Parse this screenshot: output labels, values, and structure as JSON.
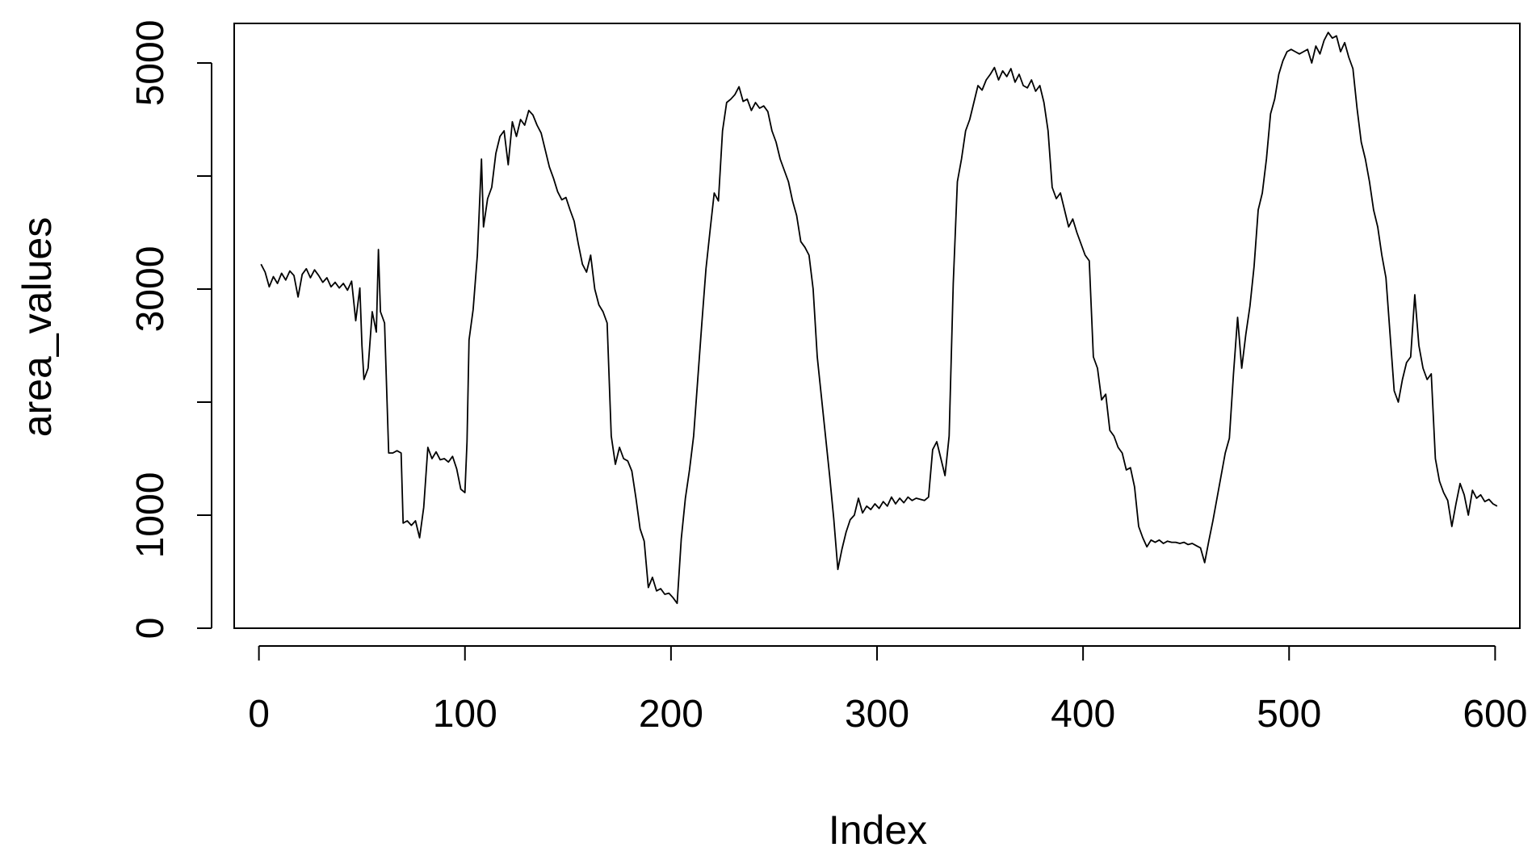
{
  "chart_data": {
    "type": "line",
    "xlabel": "Index",
    "ylabel": "area_values",
    "xlim": [
      -12,
      612
    ],
    "ylim": [
      0,
      5350
    ],
    "x_ticks": [
      0,
      100,
      200,
      300,
      400,
      500,
      600
    ],
    "y_ticks": [
      0,
      1000,
      2000,
      3000,
      4000,
      5000
    ],
    "y_tick_labels": [
      0,
      1000,
      3000,
      5000
    ],
    "grid": false,
    "line_color": "#000000",
    "series": [
      {
        "points": [
          [
            1,
            3220
          ],
          [
            3,
            3150
          ],
          [
            5,
            3020
          ],
          [
            7,
            3110
          ],
          [
            9,
            3050
          ],
          [
            11,
            3140
          ],
          [
            13,
            3080
          ],
          [
            15,
            3160
          ],
          [
            17,
            3120
          ],
          [
            19,
            2930
          ],
          [
            21,
            3130
          ],
          [
            23,
            3180
          ],
          [
            25,
            3100
          ],
          [
            27,
            3170
          ],
          [
            29,
            3120
          ],
          [
            31,
            3060
          ],
          [
            33,
            3100
          ],
          [
            35,
            3020
          ],
          [
            37,
            3060
          ],
          [
            39,
            3010
          ],
          [
            41,
            3050
          ],
          [
            43,
            2990
          ],
          [
            45,
            3070
          ],
          [
            47,
            2720
          ],
          [
            49,
            3010
          ],
          [
            50,
            2500
          ],
          [
            51,
            2200
          ],
          [
            53,
            2300
          ],
          [
            55,
            2800
          ],
          [
            57,
            2620
          ],
          [
            58,
            3350
          ],
          [
            59,
            2800
          ],
          [
            61,
            2700
          ],
          [
            63,
            1550
          ],
          [
            65,
            1550
          ],
          [
            67,
            1570
          ],
          [
            69,
            1550
          ],
          [
            70,
            930
          ],
          [
            72,
            950
          ],
          [
            74,
            910
          ],
          [
            76,
            950
          ],
          [
            78,
            800
          ],
          [
            80,
            1070
          ],
          [
            82,
            1600
          ],
          [
            84,
            1500
          ],
          [
            86,
            1560
          ],
          [
            88,
            1490
          ],
          [
            90,
            1500
          ],
          [
            92,
            1470
          ],
          [
            94,
            1520
          ],
          [
            96,
            1410
          ],
          [
            98,
            1230
          ],
          [
            100,
            1200
          ],
          [
            101,
            1650
          ],
          [
            102,
            2550
          ],
          [
            104,
            2820
          ],
          [
            106,
            3300
          ],
          [
            108,
            4150
          ],
          [
            109,
            3550
          ],
          [
            111,
            3800
          ],
          [
            113,
            3900
          ],
          [
            115,
            4200
          ],
          [
            117,
            4350
          ],
          [
            119,
            4400
          ],
          [
            121,
            4100
          ],
          [
            123,
            4480
          ],
          [
            125,
            4350
          ],
          [
            127,
            4500
          ],
          [
            129,
            4450
          ],
          [
            131,
            4580
          ],
          [
            133,
            4540
          ],
          [
            135,
            4450
          ],
          [
            137,
            4380
          ],
          [
            139,
            4230
          ],
          [
            141,
            4080
          ],
          [
            143,
            3980
          ],
          [
            145,
            3860
          ],
          [
            147,
            3790
          ],
          [
            149,
            3810
          ],
          [
            151,
            3700
          ],
          [
            153,
            3600
          ],
          [
            155,
            3400
          ],
          [
            157,
            3220
          ],
          [
            159,
            3150
          ],
          [
            161,
            3300
          ],
          [
            163,
            3000
          ],
          [
            165,
            2860
          ],
          [
            167,
            2800
          ],
          [
            169,
            2700
          ],
          [
            171,
            1700
          ],
          [
            173,
            1450
          ],
          [
            175,
            1600
          ],
          [
            177,
            1500
          ],
          [
            179,
            1480
          ],
          [
            181,
            1390
          ],
          [
            183,
            1150
          ],
          [
            185,
            880
          ],
          [
            187,
            770
          ],
          [
            189,
            360
          ],
          [
            191,
            450
          ],
          [
            193,
            330
          ],
          [
            195,
            350
          ],
          [
            197,
            300
          ],
          [
            199,
            310
          ],
          [
            201,
            270
          ],
          [
            203,
            220
          ],
          [
            205,
            790
          ],
          [
            207,
            1150
          ],
          [
            209,
            1400
          ],
          [
            211,
            1700
          ],
          [
            213,
            2200
          ],
          [
            215,
            2700
          ],
          [
            217,
            3180
          ],
          [
            219,
            3520
          ],
          [
            221,
            3850
          ],
          [
            223,
            3780
          ],
          [
            225,
            4400
          ],
          [
            227,
            4650
          ],
          [
            229,
            4680
          ],
          [
            231,
            4720
          ],
          [
            233,
            4790
          ],
          [
            235,
            4660
          ],
          [
            237,
            4680
          ],
          [
            239,
            4580
          ],
          [
            241,
            4650
          ],
          [
            243,
            4600
          ],
          [
            245,
            4620
          ],
          [
            247,
            4570
          ],
          [
            249,
            4400
          ],
          [
            251,
            4300
          ],
          [
            253,
            4150
          ],
          [
            255,
            4050
          ],
          [
            257,
            3950
          ],
          [
            259,
            3780
          ],
          [
            261,
            3650
          ],
          [
            263,
            3420
          ],
          [
            265,
            3370
          ],
          [
            267,
            3300
          ],
          [
            269,
            3000
          ],
          [
            271,
            2400
          ],
          [
            273,
            2050
          ],
          [
            275,
            1700
          ],
          [
            277,
            1350
          ],
          [
            279,
            970
          ],
          [
            281,
            520
          ],
          [
            283,
            700
          ],
          [
            285,
            850
          ],
          [
            287,
            960
          ],
          [
            289,
            1000
          ],
          [
            291,
            1150
          ],
          [
            293,
            1020
          ],
          [
            295,
            1080
          ],
          [
            297,
            1050
          ],
          [
            299,
            1100
          ],
          [
            301,
            1060
          ],
          [
            303,
            1120
          ],
          [
            305,
            1080
          ],
          [
            307,
            1160
          ],
          [
            309,
            1100
          ],
          [
            311,
            1150
          ],
          [
            313,
            1110
          ],
          [
            315,
            1160
          ],
          [
            317,
            1130
          ],
          [
            319,
            1150
          ],
          [
            321,
            1140
          ],
          [
            323,
            1130
          ],
          [
            325,
            1160
          ],
          [
            327,
            1580
          ],
          [
            329,
            1650
          ],
          [
            331,
            1500
          ],
          [
            333,
            1350
          ],
          [
            335,
            1700
          ],
          [
            337,
            3050
          ],
          [
            339,
            3950
          ],
          [
            341,
            4150
          ],
          [
            343,
            4400
          ],
          [
            345,
            4500
          ],
          [
            347,
            4650
          ],
          [
            349,
            4800
          ],
          [
            351,
            4760
          ],
          [
            353,
            4850
          ],
          [
            355,
            4900
          ],
          [
            357,
            4960
          ],
          [
            359,
            4850
          ],
          [
            361,
            4930
          ],
          [
            363,
            4880
          ],
          [
            365,
            4950
          ],
          [
            367,
            4830
          ],
          [
            369,
            4900
          ],
          [
            371,
            4800
          ],
          [
            373,
            4780
          ],
          [
            375,
            4850
          ],
          [
            377,
            4750
          ],
          [
            379,
            4800
          ],
          [
            381,
            4650
          ],
          [
            383,
            4400
          ],
          [
            385,
            3900
          ],
          [
            387,
            3800
          ],
          [
            389,
            3850
          ],
          [
            391,
            3700
          ],
          [
            393,
            3550
          ],
          [
            395,
            3620
          ],
          [
            397,
            3500
          ],
          [
            399,
            3400
          ],
          [
            401,
            3300
          ],
          [
            403,
            3250
          ],
          [
            405,
            2400
          ],
          [
            407,
            2300
          ],
          [
            409,
            2020
          ],
          [
            411,
            2070
          ],
          [
            413,
            1750
          ],
          [
            415,
            1700
          ],
          [
            417,
            1600
          ],
          [
            419,
            1550
          ],
          [
            421,
            1400
          ],
          [
            423,
            1420
          ],
          [
            425,
            1250
          ],
          [
            427,
            900
          ],
          [
            429,
            800
          ],
          [
            431,
            720
          ],
          [
            433,
            780
          ],
          [
            435,
            760
          ],
          [
            437,
            780
          ],
          [
            439,
            750
          ],
          [
            441,
            770
          ],
          [
            443,
            760
          ],
          [
            445,
            760
          ],
          [
            447,
            750
          ],
          [
            449,
            760
          ],
          [
            451,
            740
          ],
          [
            453,
            750
          ],
          [
            455,
            730
          ],
          [
            457,
            710
          ],
          [
            459,
            580
          ],
          [
            461,
            770
          ],
          [
            463,
            950
          ],
          [
            465,
            1150
          ],
          [
            467,
            1350
          ],
          [
            469,
            1550
          ],
          [
            471,
            1680
          ],
          [
            473,
            2250
          ],
          [
            475,
            2750
          ],
          [
            477,
            2300
          ],
          [
            479,
            2600
          ],
          [
            481,
            2850
          ],
          [
            483,
            3200
          ],
          [
            485,
            3700
          ],
          [
            487,
            3850
          ],
          [
            489,
            4150
          ],
          [
            491,
            4550
          ],
          [
            493,
            4680
          ],
          [
            495,
            4900
          ],
          [
            497,
            5020
          ],
          [
            499,
            5100
          ],
          [
            501,
            5120
          ],
          [
            503,
            5100
          ],
          [
            505,
            5080
          ],
          [
            507,
            5100
          ],
          [
            509,
            5120
          ],
          [
            511,
            5000
          ],
          [
            513,
            5150
          ],
          [
            515,
            5080
          ],
          [
            517,
            5200
          ],
          [
            519,
            5270
          ],
          [
            521,
            5220
          ],
          [
            523,
            5240
          ],
          [
            525,
            5100
          ],
          [
            527,
            5180
          ],
          [
            529,
            5050
          ],
          [
            531,
            4950
          ],
          [
            533,
            4600
          ],
          [
            535,
            4300
          ],
          [
            537,
            4150
          ],
          [
            539,
            3950
          ],
          [
            541,
            3700
          ],
          [
            543,
            3550
          ],
          [
            545,
            3300
          ],
          [
            547,
            3100
          ],
          [
            549,
            2600
          ],
          [
            551,
            2100
          ],
          [
            553,
            2000
          ],
          [
            555,
            2200
          ],
          [
            557,
            2350
          ],
          [
            559,
            2400
          ],
          [
            561,
            2950
          ],
          [
            563,
            2500
          ],
          [
            565,
            2300
          ],
          [
            567,
            2200
          ],
          [
            569,
            2250
          ],
          [
            571,
            1500
          ],
          [
            573,
            1300
          ],
          [
            575,
            1200
          ],
          [
            577,
            1130
          ],
          [
            579,
            900
          ],
          [
            581,
            1100
          ],
          [
            583,
            1280
          ],
          [
            585,
            1180
          ],
          [
            587,
            1000
          ],
          [
            589,
            1220
          ],
          [
            591,
            1150
          ],
          [
            593,
            1180
          ],
          [
            595,
            1120
          ],
          [
            597,
            1140
          ],
          [
            599,
            1100
          ],
          [
            601,
            1080
          ]
        ]
      }
    ]
  }
}
